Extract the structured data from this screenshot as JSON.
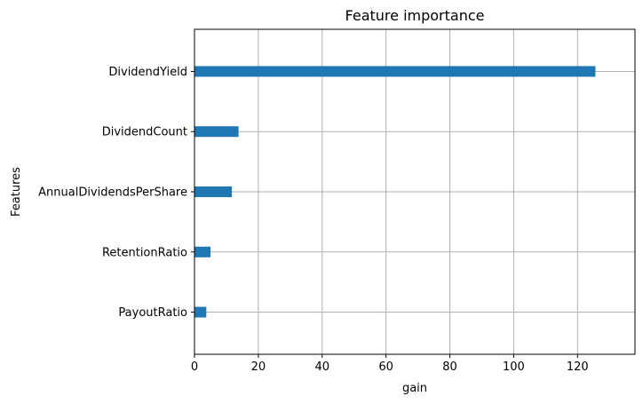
{
  "chart_data": {
    "type": "bar",
    "orientation": "horizontal",
    "title": "Feature importance",
    "xlabel": "gain",
    "ylabel": "Features",
    "categories": [
      "DividendYield",
      "DividendCount",
      "AnnualDividendsPerShare",
      "RetentionRatio",
      "PayoutRatio"
    ],
    "values": [
      125.6,
      13.8,
      11.7,
      5.0,
      3.7
    ],
    "xlim": [
      0,
      138
    ],
    "xticks": [
      0,
      20,
      40,
      60,
      80,
      100,
      120
    ],
    "grid": true,
    "bar_color": "#1f77b4"
  }
}
